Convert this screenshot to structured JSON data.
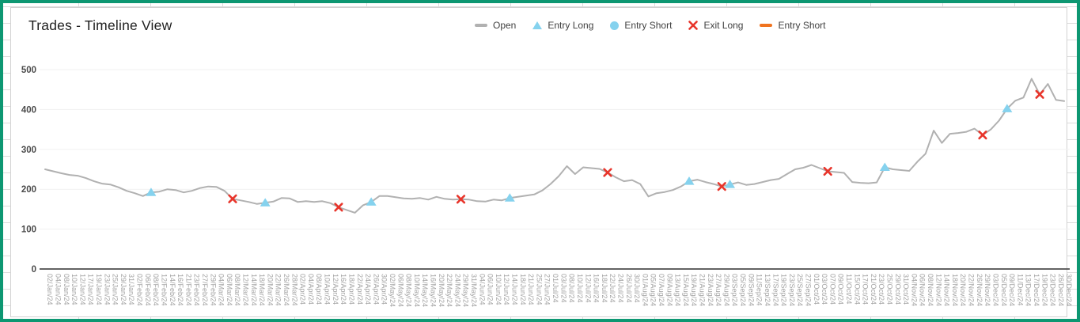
{
  "window": {
    "frame_color": "#0d9772"
  },
  "chart": {
    "title": "Trades - Timeline View"
  },
  "chart_data": {
    "type": "line",
    "title": "Trades - Timeline View",
    "grid": true,
    "legend_position": "top",
    "ylim": [
      0,
      500
    ],
    "y_ticks": [
      0,
      100,
      200,
      300,
      400,
      500
    ],
    "colors": {
      "open_line": "#b1b1b1",
      "entry_long": "#85d2ee",
      "entry_short_circle": "#85d2ee",
      "exit_long": "#e8352b",
      "entry_short_dash": "#f0731f",
      "gridline": "#f1f1f1",
      "axis_line": "#4d4d4d",
      "y_label": "#4a4a4a",
      "x_label": "#a3a3a3"
    },
    "legend": [
      {
        "label": "Open",
        "icon": "dash",
        "color": "#b1b1b1"
      },
      {
        "label": "Entry Long",
        "icon": "triangle",
        "color": "#85d2ee"
      },
      {
        "label": "Entry Short",
        "icon": "circle",
        "color": "#85d2ee"
      },
      {
        "label": "Exit Long",
        "icon": "x",
        "color": "#e8352b"
      },
      {
        "label": "Entry Short",
        "icon": "dash",
        "color": "#f0731f"
      }
    ],
    "series_name": "Open",
    "categories": [
      "02/Jan/24",
      "04/Jan/24",
      "08/Jan/24",
      "10/Jan/24",
      "12/Jan/24",
      "17/Jan/24",
      "19/Jan/24",
      "23/Jan/24",
      "25/Jan/24",
      "29/Jan/24",
      "31/Jan/24",
      "02/Feb/24",
      "06/Feb/24",
      "08/Feb/24",
      "12/Feb/24",
      "14/Feb/24",
      "16/Feb/24",
      "21/Feb/24",
      "23/Feb/24",
      "27/Feb/24",
      "29/Feb/24",
      "04/Mar/24",
      "06/Mar/24",
      "08/Mar/24",
      "12/Mar/24",
      "14/Mar/24",
      "18/Mar/24",
      "20/Mar/24",
      "22/Mar/24",
      "26/Mar/24",
      "28/Mar/24",
      "02/Apr/24",
      "04/Apr/24",
      "08/Apr/24",
      "10/Apr/24",
      "12/Apr/24",
      "16/Apr/24",
      "18/Apr/24",
      "22/Apr/24",
      "24/Apr/24",
      "26/Apr/24",
      "30/Apr/24",
      "02/May/24",
      "06/May/24",
      "08/May/24",
      "10/May/24",
      "14/May/24",
      "16/May/24",
      "20/May/24",
      "22/May/24",
      "24/May/24",
      "29/May/24",
      "31/May/24",
      "04/Jun/24",
      "06/Jun/24",
      "10/Jun/24",
      "12/Jun/24",
      "14/Jun/24",
      "18/Jun/24",
      "21/Jun/24",
      "25/Jun/24",
      "27/Jun/24",
      "01/Jul/24",
      "03/Jul/24",
      "08/Jul/24",
      "10/Jul/24",
      "12/Jul/24",
      "16/Jul/24",
      "18/Jul/24",
      "22/Jul/24",
      "24/Jul/24",
      "26/Jul/24",
      "30/Jul/24",
      "01/Aug/24",
      "05/Aug/24",
      "07/Aug/24",
      "09/Aug/24",
      "13/Aug/24",
      "15/Aug/24",
      "19/Aug/24",
      "21/Aug/24",
      "23/Aug/24",
      "27/Aug/24",
      "29/Aug/24",
      "03/Sep/24",
      "05/Sep/24",
      "09/Sep/24",
      "11/Sep/24",
      "13/Sep/24",
      "17/Sep/24",
      "19/Sep/24",
      "23/Sep/24",
      "25/Sep/24",
      "27/Sep/24",
      "01/Oct/24",
      "03/Oct/24",
      "07/Oct/24",
      "09/Oct/24",
      "11/Oct/24",
      "15/Oct/24",
      "17/Oct/24",
      "21/Oct/24",
      "23/Oct/24",
      "25/Oct/24",
      "29/Oct/24",
      "31/Oct/24",
      "04/Nov/24",
      "06/Nov/24",
      "08/Nov/24",
      "12/Nov/24",
      "14/Nov/24",
      "18/Nov/24",
      "20/Nov/24",
      "22/Nov/24",
      "26/Nov/24",
      "29/Nov/24",
      "03/Dec/24",
      "05/Dec/24",
      "09/Dec/24",
      "11/Dec/24",
      "13/Dec/24",
      "17/Dec/24",
      "19/Dec/24",
      "23/Dec/24",
      "26/Dec/24",
      "30/Dec/24"
    ],
    "values": [
      250,
      245,
      240,
      236,
      234,
      228,
      220,
      214,
      212,
      205,
      196,
      190,
      183,
      192,
      194,
      200,
      198,
      192,
      196,
      203,
      207,
      206,
      196,
      176,
      172,
      168,
      163,
      166,
      169,
      178,
      177,
      168,
      170,
      168,
      170,
      165,
      155,
      148,
      141,
      160,
      168,
      183,
      183,
      180,
      177,
      176,
      178,
      174,
      181,
      176,
      174,
      175,
      174,
      170,
      169,
      174,
      172,
      178,
      181,
      184,
      187,
      197,
      213,
      233,
      258,
      238,
      255,
      253,
      251,
      242,
      230,
      220,
      223,
      213,
      182,
      190,
      193,
      198,
      207,
      220,
      224,
      218,
      213,
      207,
      212,
      217,
      211,
      213,
      218,
      223,
      226,
      238,
      250,
      254,
      261,
      253,
      245,
      243,
      241,
      218,
      216,
      215,
      217,
      255,
      250,
      248,
      246,
      269,
      289,
      347,
      316,
      339,
      341,
      344,
      352,
      336,
      350,
      372,
      402,
      422,
      430,
      477,
      438,
      464,
      424,
      421
    ],
    "markers": [
      {
        "type": "entry_long",
        "date": "08/Feb/24",
        "value": 192
      },
      {
        "type": "exit_long",
        "date": "08/Mar/24",
        "value": 176
      },
      {
        "type": "entry_long",
        "date": "20/Mar/24",
        "value": 166
      },
      {
        "type": "exit_long",
        "date": "16/Apr/24",
        "value": 155
      },
      {
        "type": "entry_long",
        "date": "26/Apr/24",
        "value": 168
      },
      {
        "type": "exit_long",
        "date": "29/May/24",
        "value": 175
      },
      {
        "type": "entry_long",
        "date": "14/Jun/24",
        "value": 178
      },
      {
        "type": "exit_long",
        "date": "22/Jul/24",
        "value": 242
      },
      {
        "type": "entry_long",
        "date": "19/Aug/24",
        "value": 220
      },
      {
        "type": "exit_long",
        "date": "29/Aug/24",
        "value": 207
      },
      {
        "type": "entry_long",
        "date": "03/Sep/24",
        "value": 212
      },
      {
        "type": "exit_long",
        "date": "07/Oct/24",
        "value": 245
      },
      {
        "type": "entry_long",
        "date": "25/Oct/24",
        "value": 255
      },
      {
        "type": "exit_long",
        "date": "29/Nov/24",
        "value": 336
      },
      {
        "type": "entry_long",
        "date": "09/Dec/24",
        "value": 402
      },
      {
        "type": "exit_long",
        "date": "19/Dec/24",
        "value": 438
      }
    ]
  }
}
